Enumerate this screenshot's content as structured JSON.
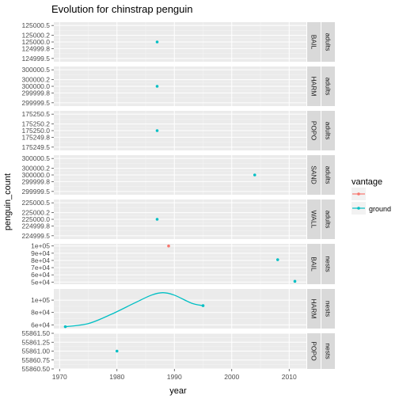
{
  "chart_data": {
    "type": "scatter",
    "title": "Evolution for chinstrap penguin",
    "xlabel": "year",
    "ylabel": "penguin_count",
    "xlim": [
      1969,
      2013
    ],
    "x_ticks": [
      1970,
      1980,
      1990,
      2000,
      2010
    ],
    "grid": true,
    "legend": {
      "title": "vantage",
      "placement": "right",
      "entries": [
        {
          "name": "aerial",
          "color": "#F8766D"
        },
        {
          "name": "ground",
          "color": "#00BFC4"
        }
      ]
    },
    "strip_label_texts": [
      "BAIL",
      "HARM",
      "POPO",
      "SAND",
      "WALL",
      "adults",
      "nests"
    ],
    "panels": [
      {
        "site": "BAIL",
        "count_type": "adults",
        "ylim": [
          124999.4,
          125000.6
        ],
        "y_ticks": [
          124999.5,
          124999.8,
          125000.0,
          125000.2,
          125000.5
        ],
        "y_tick_labels": [
          "124999.5",
          "124999.8",
          "125000.0",
          "125000.2",
          "125000.5"
        ],
        "points": [
          {
            "x": 1987,
            "y": 125000,
            "vantage": "ground"
          }
        ]
      },
      {
        "site": "HARM",
        "count_type": "adults",
        "ylim": [
          299999.4,
          300000.6
        ],
        "y_ticks": [
          299999.5,
          299999.8,
          300000.0,
          300000.2,
          300000.5
        ],
        "y_tick_labels": [
          "299999.5",
          "299999.8",
          "300000.0",
          "300000.2",
          "300000.5"
        ],
        "points": [
          {
            "x": 1987,
            "y": 300000,
            "vantage": "ground"
          }
        ]
      },
      {
        "site": "POPO",
        "count_type": "adults",
        "ylim": [
          175249.4,
          175250.6
        ],
        "y_ticks": [
          175249.5,
          175249.8,
          175250.0,
          175250.2,
          175250.5
        ],
        "y_tick_labels": [
          "175249.5",
          "175249.8",
          "175250.0",
          "175250.2",
          "175250.5"
        ],
        "points": [
          {
            "x": 1987,
            "y": 175250,
            "vantage": "ground"
          }
        ]
      },
      {
        "site": "SAND",
        "count_type": "adults",
        "ylim": [
          299999.4,
          300000.6
        ],
        "y_ticks": [
          299999.5,
          299999.8,
          300000.0,
          300000.2,
          300000.5
        ],
        "y_tick_labels": [
          "299999.5",
          "299999.8",
          "300000.0",
          "300000.2",
          "300000.5"
        ],
        "points": [
          {
            "x": 2004,
            "y": 300000,
            "vantage": "ground"
          }
        ]
      },
      {
        "site": "WALL",
        "count_type": "adults",
        "ylim": [
          224999.4,
          225000.6
        ],
        "y_ticks": [
          224999.5,
          224999.8,
          225000.0,
          225000.2,
          225000.5
        ],
        "y_tick_labels": [
          "224999.5",
          "224999.8",
          "225000.0",
          "225000.2",
          "225000.5"
        ],
        "points": [
          {
            "x": 1987,
            "y": 225000,
            "vantage": "ground"
          }
        ]
      },
      {
        "site": "BAIL",
        "count_type": "nests",
        "ylim": [
          47000,
          103000
        ],
        "y_ticks": [
          50000,
          60000,
          70000,
          80000,
          90000,
          100000
        ],
        "y_tick_labels": [
          "5e+04",
          "6e+04",
          "7e+04",
          "8e+04",
          "9e+04",
          "1e+05"
        ],
        "points": [
          {
            "x": 1989,
            "y": 100000,
            "vantage": "aerial"
          },
          {
            "x": 2008,
            "y": 81000,
            "vantage": "ground"
          },
          {
            "x": 2011,
            "y": 51000,
            "vantage": "ground"
          }
        ]
      },
      {
        "site": "HARM",
        "count_type": "nests",
        "ylim": [
          54000,
          118000
        ],
        "y_ticks": [
          60000,
          80000,
          100000
        ],
        "y_tick_labels": [
          "6e+04",
          "8e+04",
          "1e+05"
        ],
        "points": [
          {
            "x": 1971,
            "y": 57000,
            "vantage": "ground"
          },
          {
            "x": 1975,
            "y": 62000,
            "vantage": "ground"
          },
          {
            "x": 1979,
            "y": 77000,
            "vantage": "ground"
          },
          {
            "x": 1983,
            "y": 95000,
            "vantage": "ground"
          },
          {
            "x": 1986,
            "y": 108000,
            "vantage": "ground"
          },
          {
            "x": 1988,
            "y": 112000,
            "vantage": "ground"
          },
          {
            "x": 1990,
            "y": 108000,
            "vantage": "ground"
          },
          {
            "x": 1993,
            "y": 95000,
            "vantage": "ground"
          },
          {
            "x": 1995,
            "y": 91000,
            "vantage": "ground"
          }
        ]
      },
      {
        "site": "POPO",
        "count_type": "nests",
        "ylim": [
          55860.5,
          55861.5
        ],
        "y_ticks": [
          55860.5,
          55860.75,
          55861.0,
          55861.25,
          55861.5
        ],
        "y_tick_labels": [
          "55860.50",
          "55860.75",
          "55861.00",
          "55861.25",
          "55861.50"
        ],
        "points": [
          {
            "x": 1980,
            "y": 55861,
            "vantage": "ground"
          }
        ]
      }
    ]
  }
}
